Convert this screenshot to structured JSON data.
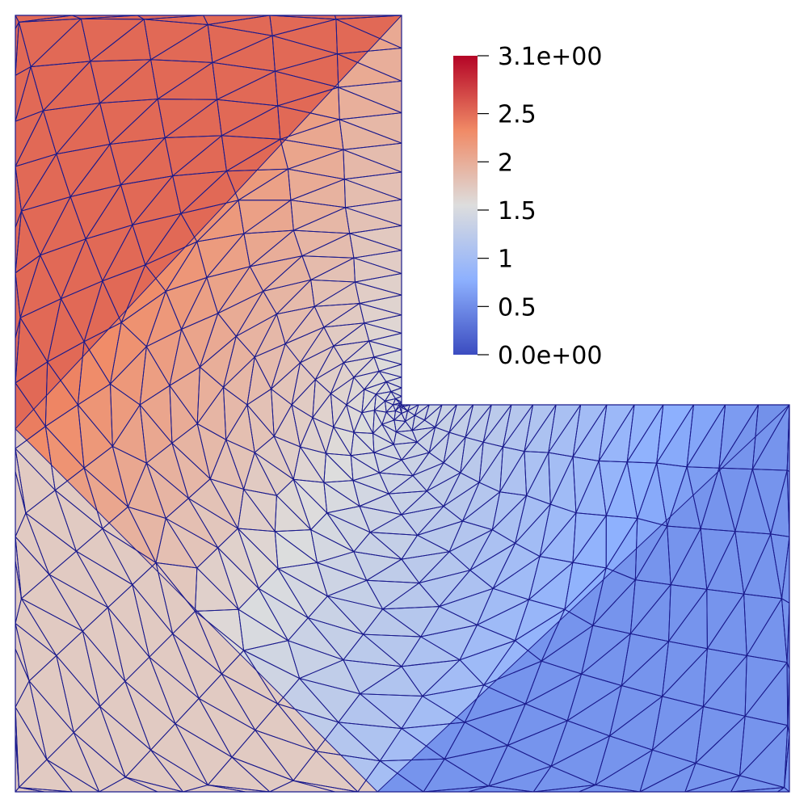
{
  "colorbar": {
    "max_label": "3.1e+00",
    "min_label": "0.0e+00",
    "range": [
      0,
      3.1
    ],
    "ticks": [
      {
        "value": 3.1,
        "label": "3.1e+00"
      },
      {
        "value": 2.5,
        "label": "2.5"
      },
      {
        "value": 2.0,
        "label": "2"
      },
      {
        "value": 1.5,
        "label": "1.5"
      },
      {
        "value": 1.0,
        "label": "1"
      },
      {
        "value": 0.5,
        "label": "0.5"
      },
      {
        "value": 0.0,
        "label": "0.0e+00"
      }
    ],
    "colormap": "Cool to Warm",
    "colors": {
      "high": "#b40426",
      "mid_high": "#f08a66",
      "mid": "#dddddd",
      "mid_low": "#8db0fe",
      "low": "#3b4cc0"
    }
  },
  "mesh": {
    "shape": "L-shaped domain",
    "wire_color": "#1a1a8c",
    "field_range": [
      0,
      3.1
    ]
  }
}
